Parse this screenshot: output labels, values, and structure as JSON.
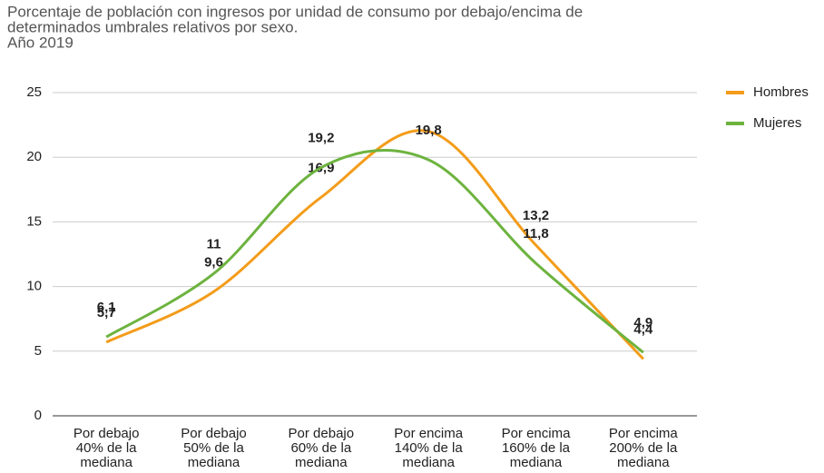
{
  "chart_data": {
    "type": "line",
    "title": [
      "Porcentaje de población con ingresos por unidad de consumo por debajo/encima de",
      "determinados umbrales relativos por sexo.",
      "Año 2019"
    ],
    "categories": [
      [
        "Por debajo",
        "40% de la",
        "mediana"
      ],
      [
        "Por debajo",
        "50% de la",
        "mediana"
      ],
      [
        "Por debajo",
        "60% de la",
        "mediana"
      ],
      [
        "Por encima",
        "140% de la",
        "mediana"
      ],
      [
        "Por encima",
        "160% de la",
        "mediana"
      ],
      [
        "Por encima",
        "200% de la",
        "mediana"
      ]
    ],
    "series": [
      {
        "name": "Hombres",
        "color": "#f39c1a",
        "values": [
          5.7,
          9.6,
          16.9,
          22.0,
          13.2,
          4.4
        ],
        "value_labels": [
          "5,7",
          "9,6",
          "16,9",
          null,
          "13,2",
          "4,4"
        ]
      },
      {
        "name": "Mujeres",
        "color": "#6db33f",
        "values": [
          6.1,
          11,
          19.2,
          19.8,
          11.8,
          4.9
        ],
        "value_labels": [
          "6,1",
          "11",
          "19,2",
          "19,8",
          "11,8",
          "4,9"
        ]
      }
    ],
    "ylim": [
      0,
      25
    ],
    "yticks": [
      0,
      5,
      10,
      15,
      20,
      25
    ],
    "grid": true,
    "legend": "right"
  }
}
